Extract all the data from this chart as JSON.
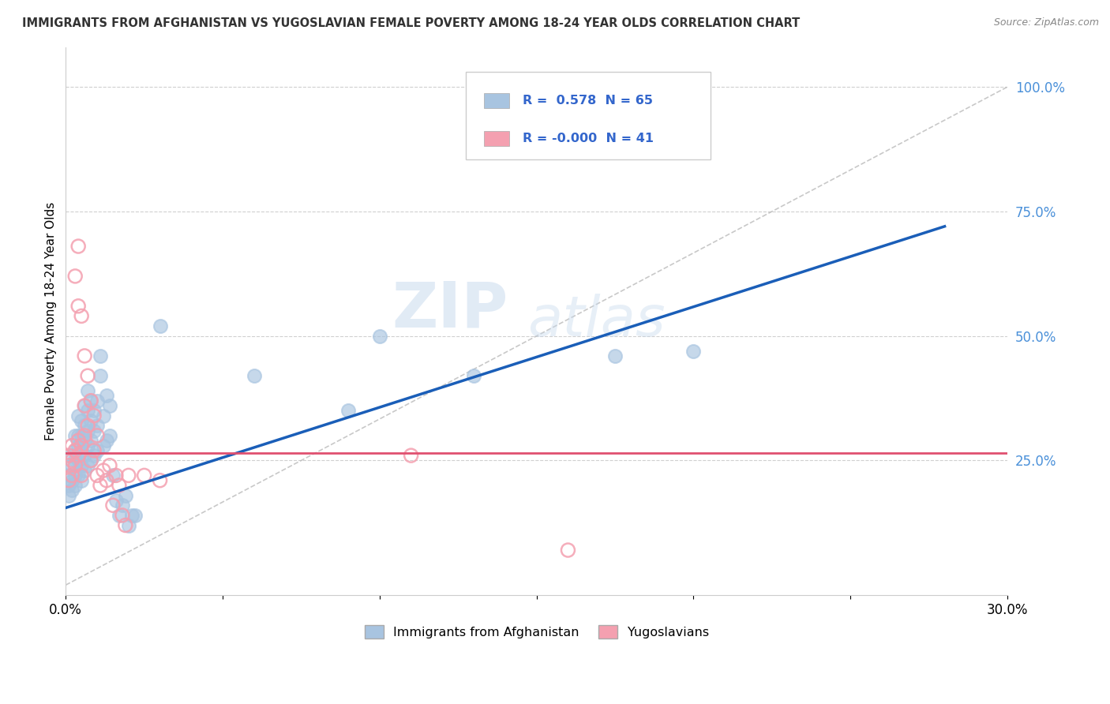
{
  "title": "IMMIGRANTS FROM AFGHANISTAN VS YUGOSLAVIAN FEMALE POVERTY AMONG 18-24 YEAR OLDS CORRELATION CHART",
  "source": "Source: ZipAtlas.com",
  "ylabel": "Female Poverty Among 18-24 Year Olds",
  "xlim": [
    0.0,
    0.3
  ],
  "ylim": [
    -0.02,
    1.08
  ],
  "afghanistan_color": "#a8c4e0",
  "yugoslavian_color": "#f4a0b0",
  "afghanistan_line_color": "#1a5eb8",
  "yugoslavian_line_color": "#e05070",
  "diagonal_line_color": "#bbbbbb",
  "legend_R_afghanistan": "0.578",
  "legend_N_afghanistan": "65",
  "legend_R_yugoslavian": "-0.000",
  "legend_N_yugoslavian": "41",
  "legend_label_afghanistan": "Immigrants from Afghanistan",
  "legend_label_yugoslavian": "Yugoslavians",
  "watermark_zip": "ZIP",
  "watermark_atlas": "atlas",
  "afghanistan_dots": [
    [
      0.001,
      0.18
    ],
    [
      0.001,
      0.2
    ],
    [
      0.001,
      0.22
    ],
    [
      0.002,
      0.19
    ],
    [
      0.002,
      0.21
    ],
    [
      0.002,
      0.24
    ],
    [
      0.002,
      0.26
    ],
    [
      0.003,
      0.2
    ],
    [
      0.003,
      0.22
    ],
    [
      0.003,
      0.25
    ],
    [
      0.003,
      0.27
    ],
    [
      0.003,
      0.3
    ],
    [
      0.004,
      0.22
    ],
    [
      0.004,
      0.25
    ],
    [
      0.004,
      0.28
    ],
    [
      0.004,
      0.3
    ],
    [
      0.004,
      0.34
    ],
    [
      0.005,
      0.21
    ],
    [
      0.005,
      0.24
    ],
    [
      0.005,
      0.27
    ],
    [
      0.005,
      0.3
    ],
    [
      0.005,
      0.33
    ],
    [
      0.006,
      0.23
    ],
    [
      0.006,
      0.26
    ],
    [
      0.006,
      0.29
    ],
    [
      0.006,
      0.32
    ],
    [
      0.006,
      0.36
    ],
    [
      0.007,
      0.24
    ],
    [
      0.007,
      0.28
    ],
    [
      0.007,
      0.31
    ],
    [
      0.007,
      0.35
    ],
    [
      0.007,
      0.39
    ],
    [
      0.008,
      0.25
    ],
    [
      0.008,
      0.29
    ],
    [
      0.008,
      0.33
    ],
    [
      0.008,
      0.37
    ],
    [
      0.009,
      0.26
    ],
    [
      0.009,
      0.31
    ],
    [
      0.009,
      0.35
    ],
    [
      0.01,
      0.27
    ],
    [
      0.01,
      0.32
    ],
    [
      0.01,
      0.37
    ],
    [
      0.011,
      0.42
    ],
    [
      0.011,
      0.46
    ],
    [
      0.012,
      0.28
    ],
    [
      0.012,
      0.34
    ],
    [
      0.013,
      0.29
    ],
    [
      0.013,
      0.38
    ],
    [
      0.014,
      0.3
    ],
    [
      0.014,
      0.36
    ],
    [
      0.015,
      0.22
    ],
    [
      0.016,
      0.17
    ],
    [
      0.017,
      0.14
    ],
    [
      0.018,
      0.16
    ],
    [
      0.019,
      0.18
    ],
    [
      0.02,
      0.12
    ],
    [
      0.021,
      0.14
    ],
    [
      0.022,
      0.14
    ],
    [
      0.03,
      0.52
    ],
    [
      0.06,
      0.42
    ],
    [
      0.09,
      0.35
    ],
    [
      0.1,
      0.5
    ],
    [
      0.13,
      0.42
    ],
    [
      0.175,
      0.46
    ],
    [
      0.2,
      0.47
    ]
  ],
  "yugoslavian_dots": [
    [
      0.001,
      0.21
    ],
    [
      0.001,
      0.24
    ],
    [
      0.001,
      0.26
    ],
    [
      0.002,
      0.22
    ],
    [
      0.002,
      0.25
    ],
    [
      0.002,
      0.28
    ],
    [
      0.003,
      0.62
    ],
    [
      0.003,
      0.24
    ],
    [
      0.003,
      0.27
    ],
    [
      0.004,
      0.68
    ],
    [
      0.004,
      0.56
    ],
    [
      0.004,
      0.26
    ],
    [
      0.004,
      0.29
    ],
    [
      0.005,
      0.54
    ],
    [
      0.005,
      0.28
    ],
    [
      0.005,
      0.22
    ],
    [
      0.006,
      0.46
    ],
    [
      0.006,
      0.36
    ],
    [
      0.006,
      0.3
    ],
    [
      0.007,
      0.42
    ],
    [
      0.007,
      0.32
    ],
    [
      0.008,
      0.37
    ],
    [
      0.008,
      0.25
    ],
    [
      0.009,
      0.34
    ],
    [
      0.009,
      0.27
    ],
    [
      0.01,
      0.3
    ],
    [
      0.01,
      0.22
    ],
    [
      0.011,
      0.2
    ],
    [
      0.012,
      0.23
    ],
    [
      0.013,
      0.21
    ],
    [
      0.014,
      0.24
    ],
    [
      0.015,
      0.16
    ],
    [
      0.016,
      0.22
    ],
    [
      0.017,
      0.2
    ],
    [
      0.018,
      0.14
    ],
    [
      0.019,
      0.12
    ],
    [
      0.02,
      0.22
    ],
    [
      0.025,
      0.22
    ],
    [
      0.03,
      0.21
    ],
    [
      0.11,
      0.26
    ],
    [
      0.16,
      0.07
    ]
  ],
  "afghanistan_trend_x": [
    0.0,
    0.28
  ],
  "afghanistan_trend_y": [
    0.155,
    0.72
  ],
  "yugoslavian_trend_x": [
    0.0,
    0.3
  ],
  "yugoslavian_trend_y": [
    0.265,
    0.265
  ],
  "diagonal_trend_x": [
    0.0,
    0.3
  ],
  "diagonal_trend_y": [
    0.0,
    1.0
  ]
}
